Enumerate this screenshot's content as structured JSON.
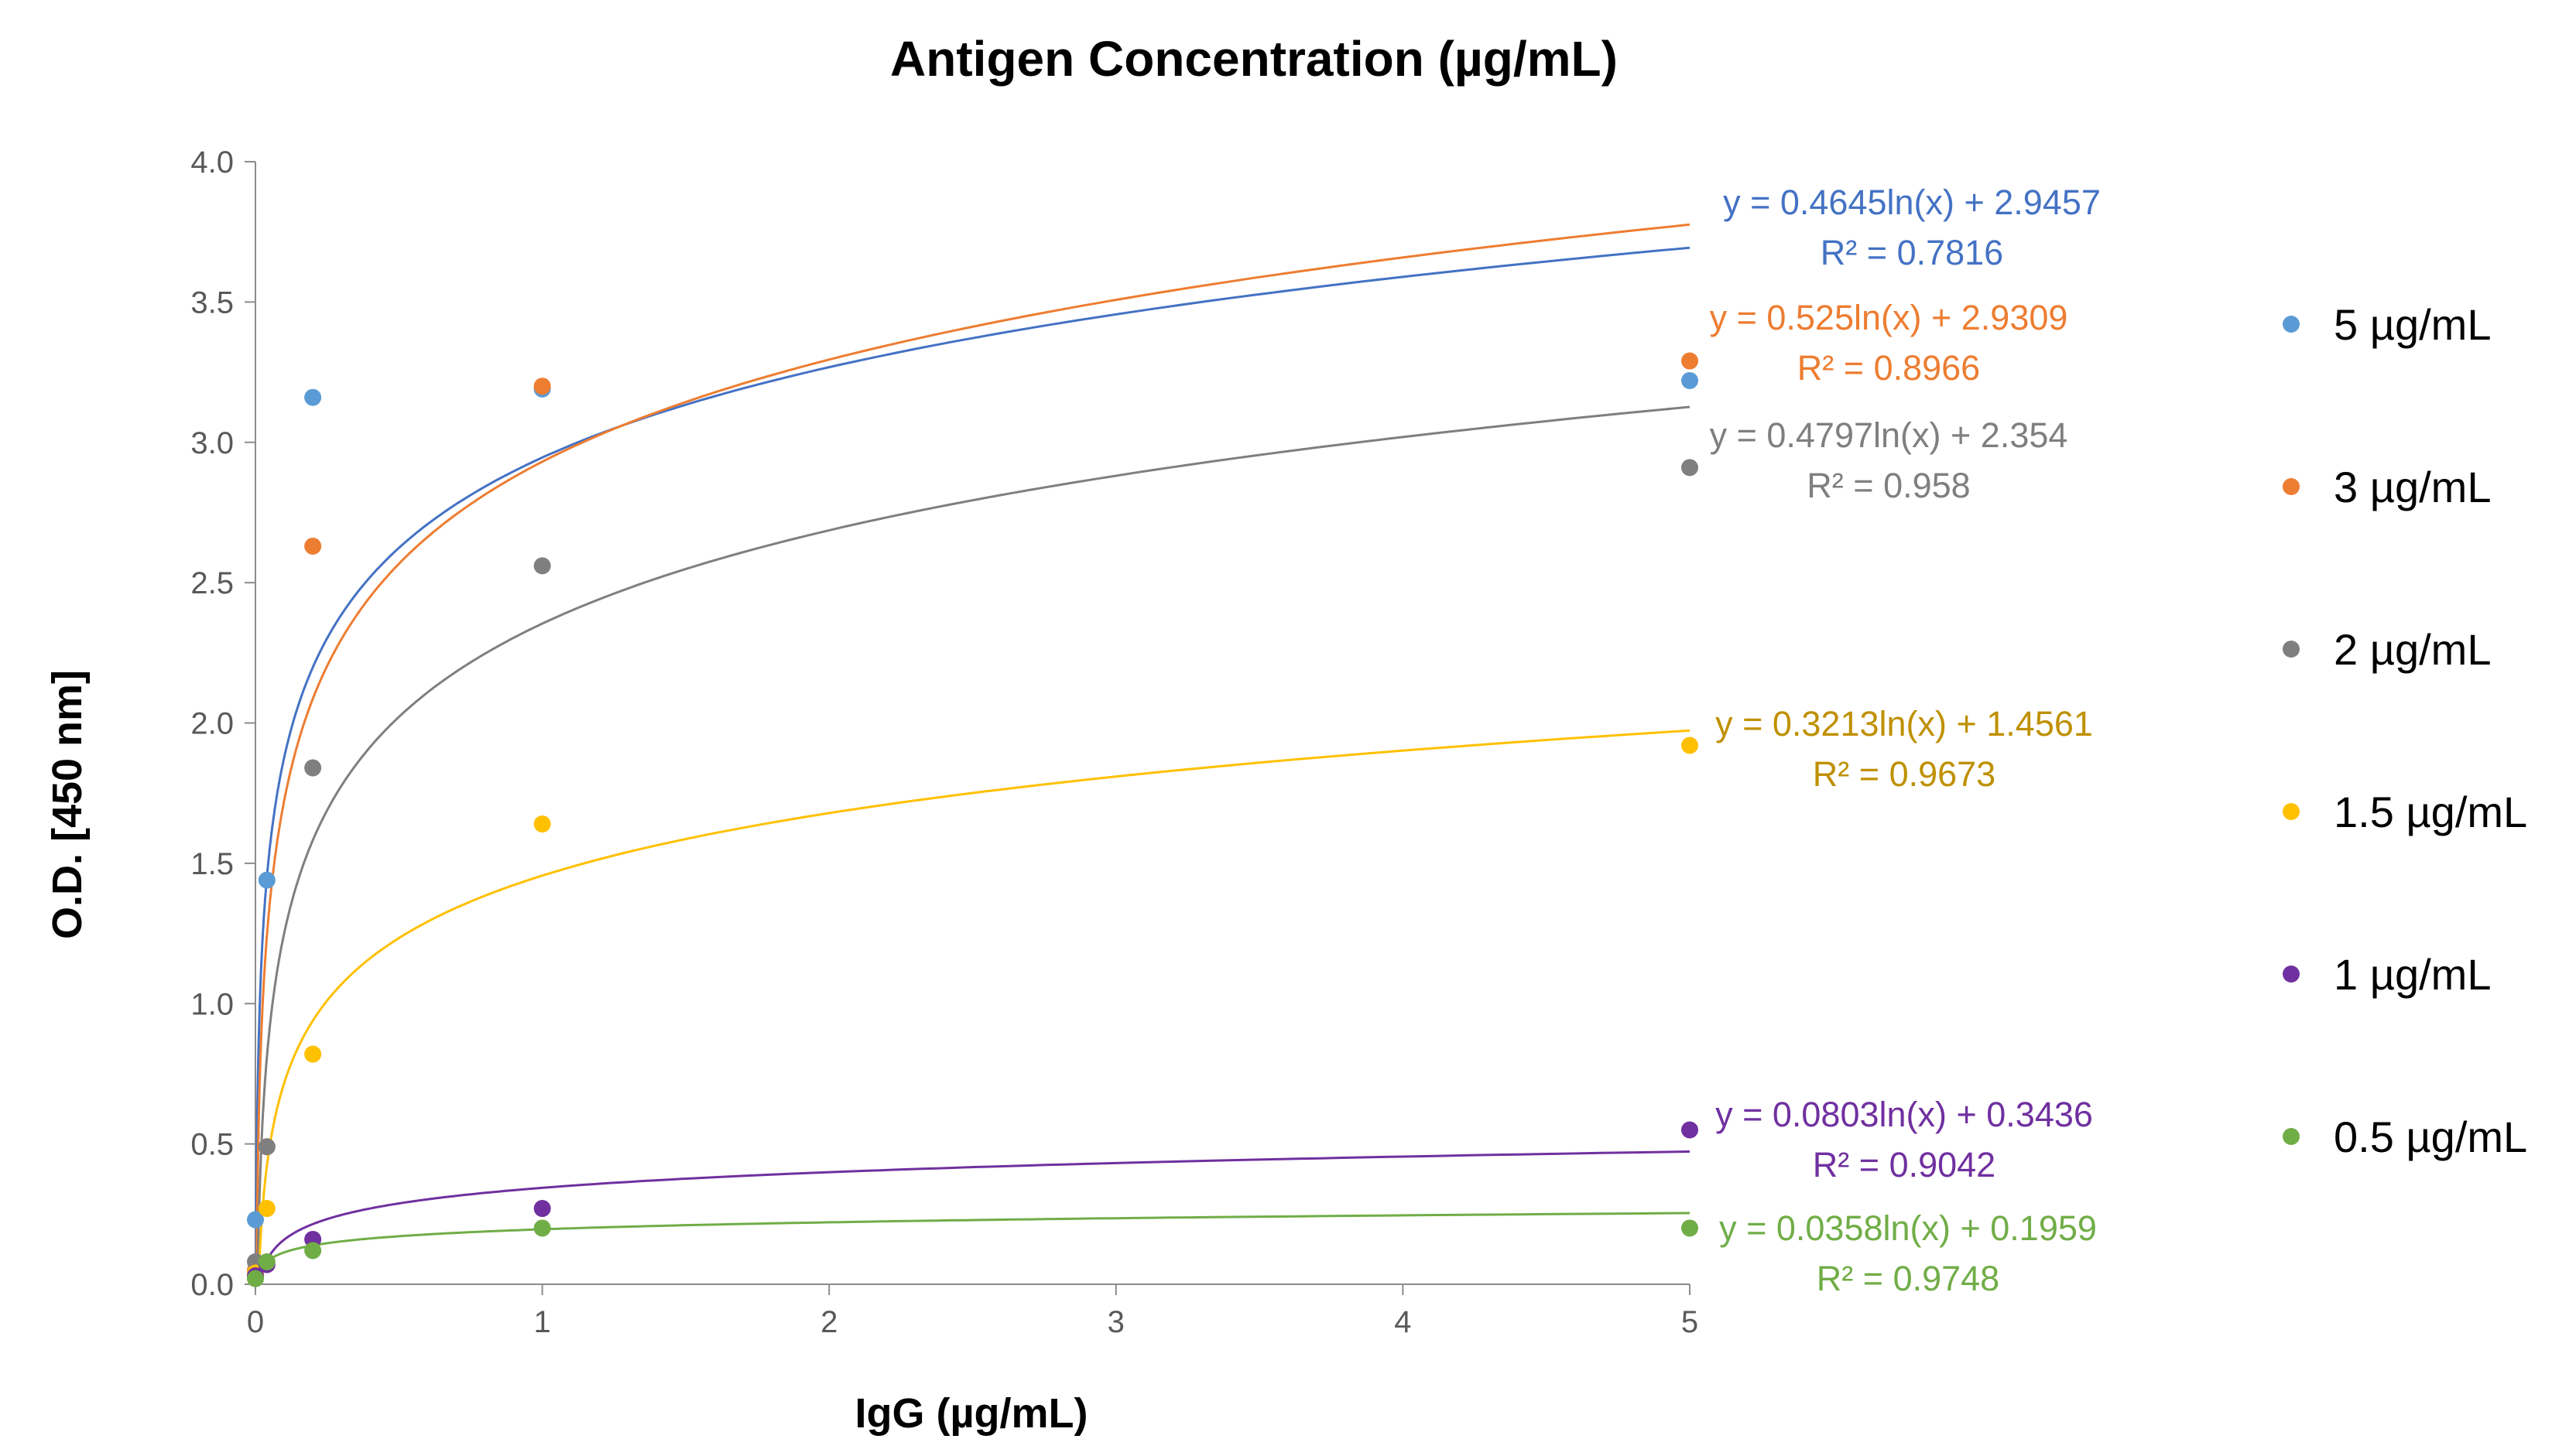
{
  "chart_data": {
    "type": "scatter",
    "title": "Antigen Concentration (µg/mL)",
    "xlabel": "IgG (µg/mL)",
    "ylabel": "O.D.  [450 nm]",
    "xlim": [
      0,
      5
    ],
    "ylim": [
      0,
      4
    ],
    "x_ticks": [
      "0",
      "1",
      "2",
      "3",
      "4",
      "5"
    ],
    "y_ticks": [
      "0.0",
      "0.5",
      "1.0",
      "1.5",
      "2.0",
      "2.5",
      "3.0",
      "3.5",
      "4.0"
    ],
    "grid": false,
    "legend_position": "right",
    "series": [
      {
        "name": "5 µg/mL",
        "color": "#5B9BD5",
        "trend_color": "#4472C4",
        "eq_color": "#4472C4",
        "points": [
          [
            0,
            0.23
          ],
          [
            0.04,
            1.44
          ],
          [
            0.2,
            3.16
          ],
          [
            1,
            3.19
          ],
          [
            5,
            3.22
          ]
        ],
        "fit": {
          "a": 0.4645,
          "b": 2.9457
        },
        "equation": "y = 0.4645ln(x) + 2.9457",
        "r2": "R² = 0.7816"
      },
      {
        "name": "3 µg/mL",
        "color": "#ED7D31",
        "trend_color": "#ED7D31",
        "eq_color": "#ED7D31",
        "points": [
          [
            0,
            0.05
          ],
          [
            0.04,
            0.49
          ],
          [
            0.2,
            2.63
          ],
          [
            1,
            3.2
          ],
          [
            5,
            3.29
          ]
        ],
        "fit": {
          "a": 0.525,
          "b": 2.9309
        },
        "equation": "y = 0.525ln(x) + 2.9309",
        "r2": "R² = 0.8966"
      },
      {
        "name": "2 µg/mL",
        "color": "#7F7F7F",
        "trend_color": "#7F7F7F",
        "eq_color": "#7F7F7F",
        "points": [
          [
            0,
            0.08
          ],
          [
            0.04,
            0.49
          ],
          [
            0.2,
            1.84
          ],
          [
            1,
            2.56
          ],
          [
            5,
            2.91
          ]
        ],
        "fit": {
          "a": 0.4797,
          "b": 2.354
        },
        "equation": "y = 0.4797ln(x) + 2.354",
        "r2": "R² = 0.958"
      },
      {
        "name": "1.5 µg/mL",
        "color": "#FFC000",
        "trend_color": "#FFC000",
        "eq_color": "#BF9000",
        "points": [
          [
            0,
            0.04
          ],
          [
            0.04,
            0.27
          ],
          [
            0.2,
            0.82
          ],
          [
            1,
            1.64
          ],
          [
            5,
            1.92
          ]
        ],
        "fit": {
          "a": 0.3213,
          "b": 1.4561
        },
        "equation": "y = 0.3213ln(x) + 1.4561",
        "r2": "R² = 0.9673"
      },
      {
        "name": "1 µg/mL",
        "color": "#7030A0",
        "trend_color": "#7030A0",
        "eq_color": "#7030A0",
        "points": [
          [
            0,
            0.03
          ],
          [
            0.04,
            0.07
          ],
          [
            0.2,
            0.16
          ],
          [
            1,
            0.27
          ],
          [
            5,
            0.55
          ]
        ],
        "fit": {
          "a": 0.0803,
          "b": 0.3436
        },
        "equation": "y = 0.0803ln(x) + 0.3436",
        "r2": "R² = 0.9042"
      },
      {
        "name": "0.5 µg/mL",
        "color": "#70AD47",
        "trend_color": "#70AD47",
        "eq_color": "#70AD47",
        "points": [
          [
            0,
            0.02
          ],
          [
            0.04,
            0.08
          ],
          [
            0.2,
            0.12
          ],
          [
            1,
            0.2
          ],
          [
            5,
            0.2
          ]
        ],
        "fit": {
          "a": 0.0358,
          "b": 0.1959
        },
        "equation": "y = 0.0358ln(x) + 0.1959",
        "r2": "R² = 0.9748"
      }
    ]
  }
}
